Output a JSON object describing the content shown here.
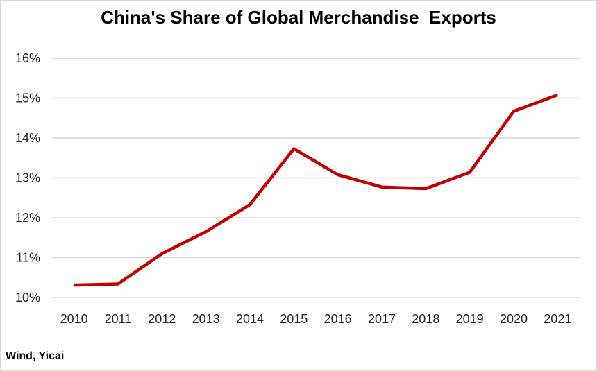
{
  "chart_data": {
    "type": "line",
    "title": "China's Share of Global Merchandise  Exports",
    "xlabel": "",
    "ylabel": "",
    "categories": [
      "2010",
      "2011",
      "2012",
      "2013",
      "2014",
      "2015",
      "2016",
      "2017",
      "2018",
      "2019",
      "2020",
      "2021"
    ],
    "series": [
      {
        "values": [
          10.31,
          10.34,
          11.1,
          11.65,
          12.33,
          13.73,
          13.08,
          12.77,
          12.73,
          13.14,
          14.67,
          15.08
        ],
        "color": "#c00000"
      }
    ],
    "ylim": [
      10,
      16
    ],
    "yticks": [
      10,
      11,
      12,
      13,
      14,
      15,
      16
    ],
    "ytick_labels": [
      "10%",
      "11%",
      "12%",
      "13%",
      "14%",
      "15%",
      "16%"
    ],
    "grid": true,
    "legend": "none",
    "source": "Wind, Yicai"
  }
}
